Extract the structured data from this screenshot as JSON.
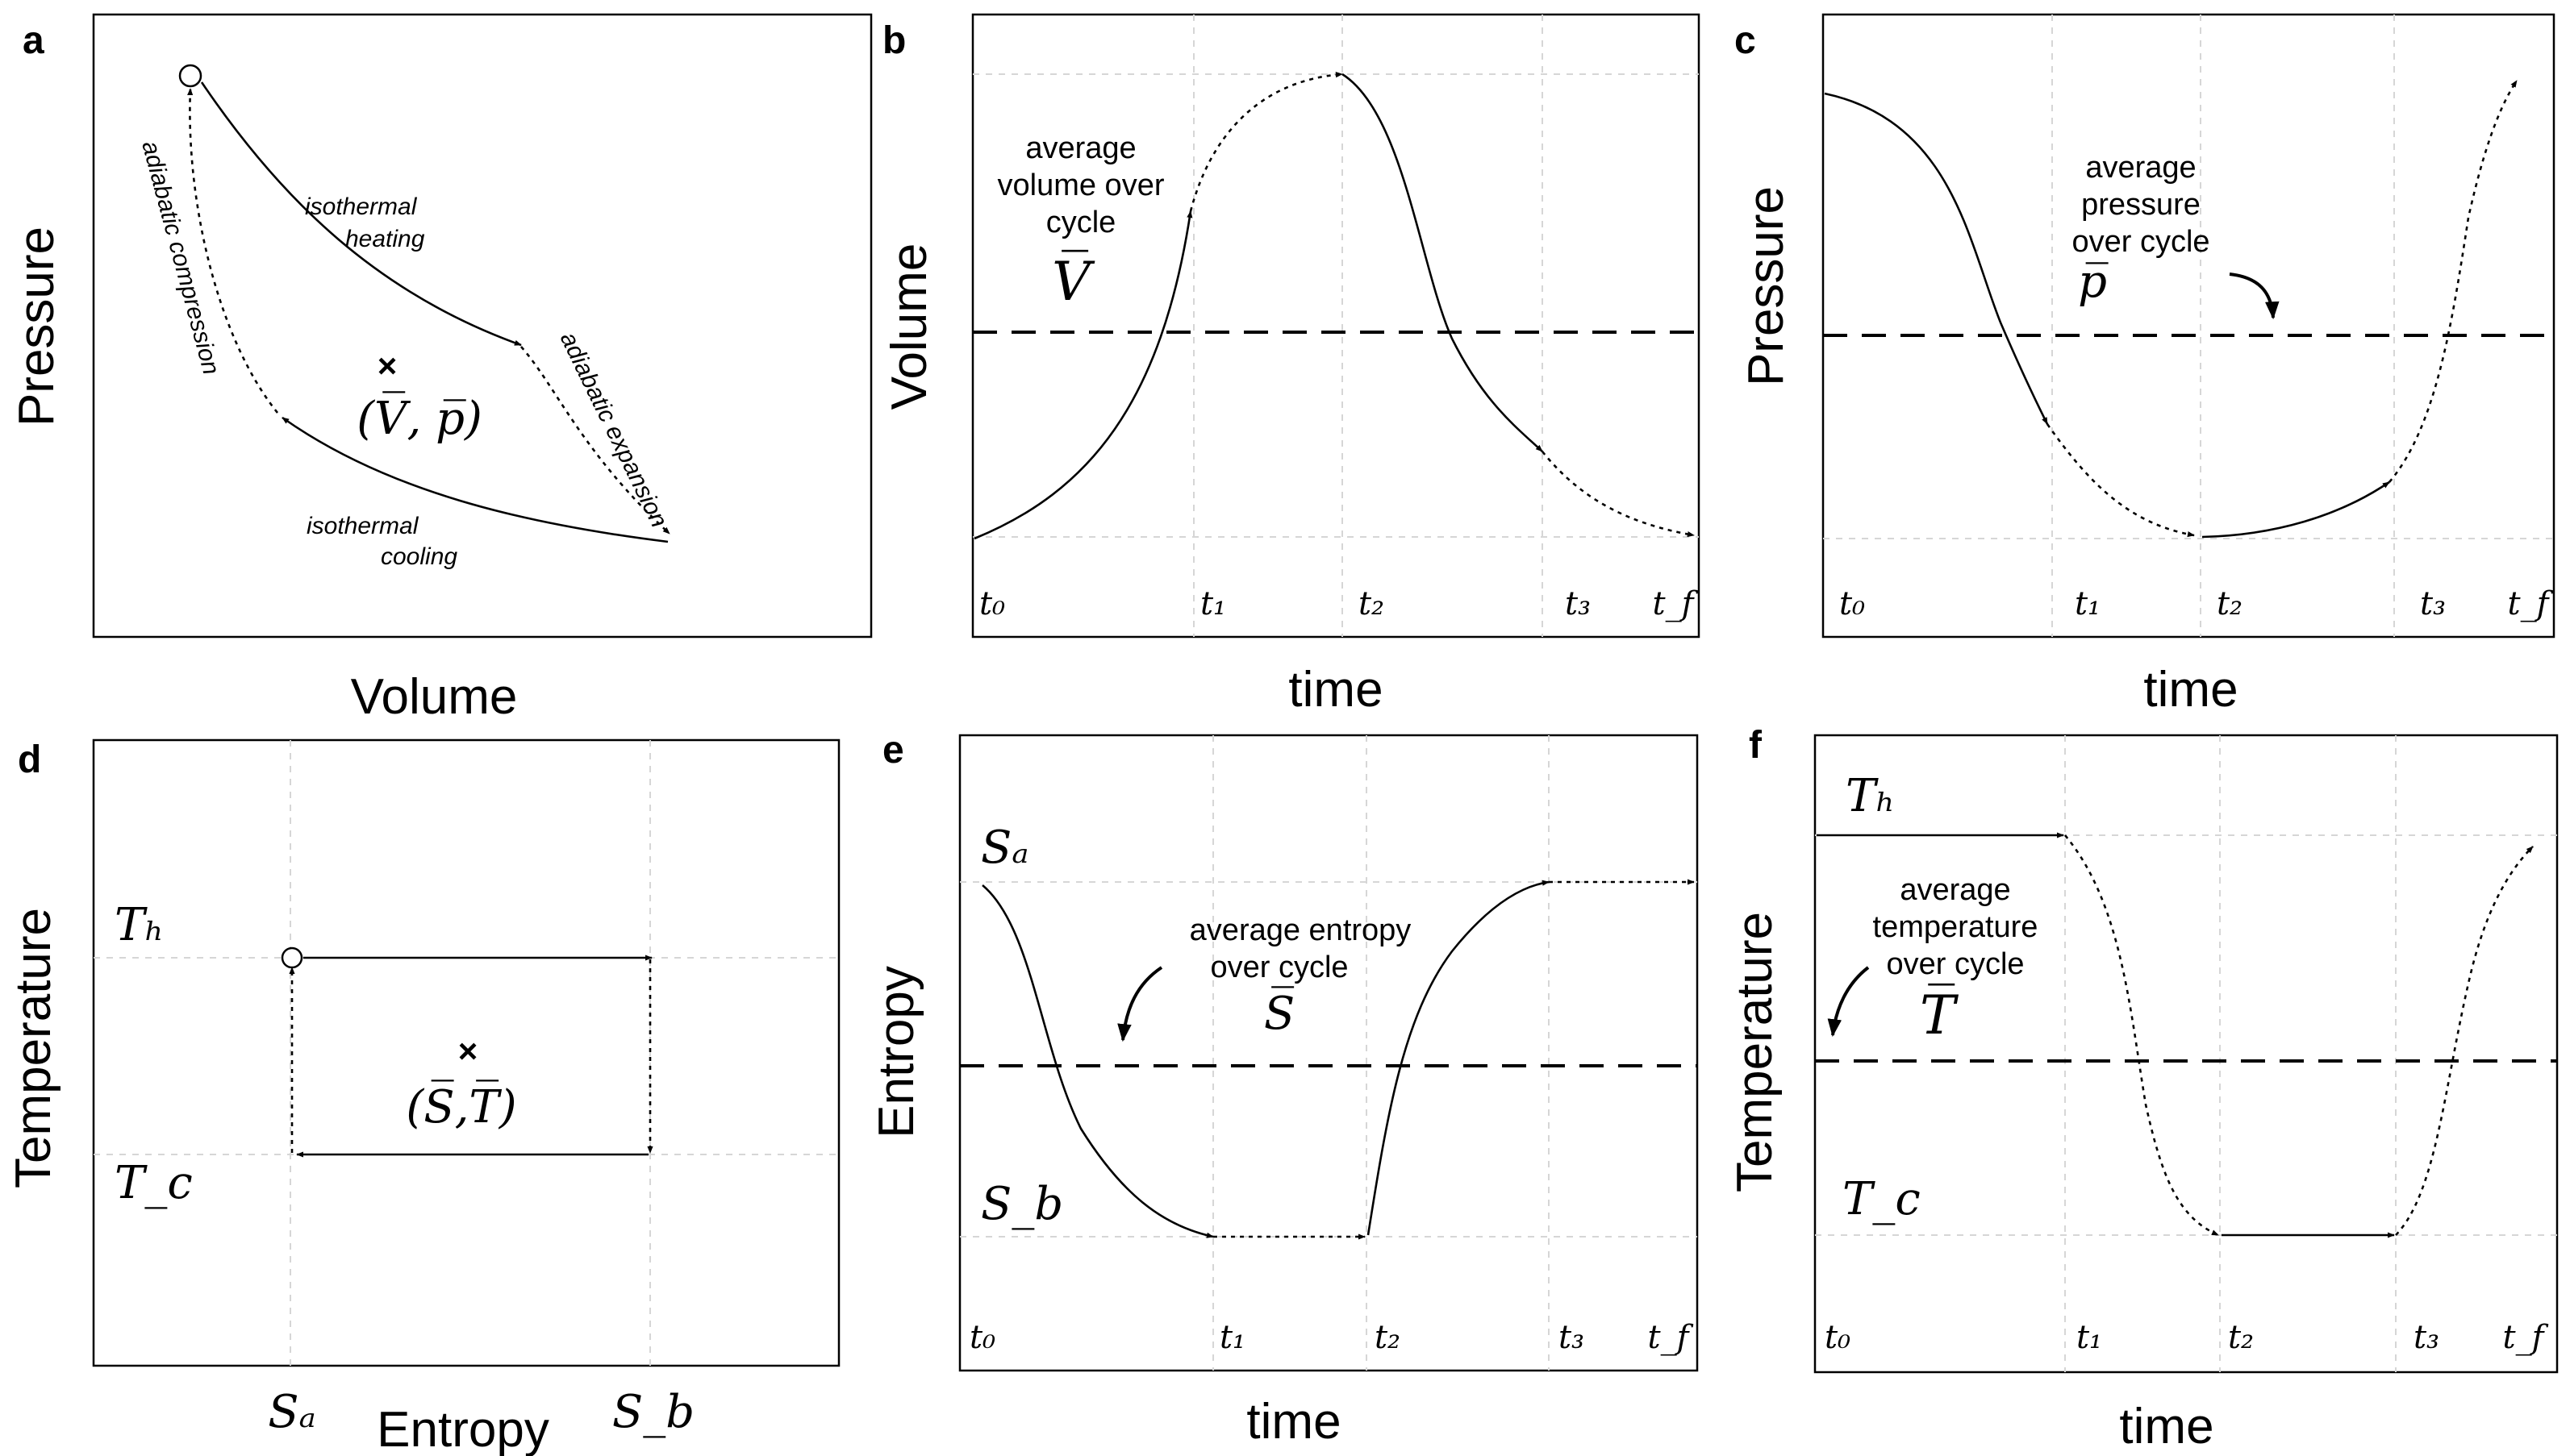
{
  "panels": {
    "a": {
      "label": "a",
      "ylabel": "Pressure",
      "xlabel": "Volume",
      "annotations": {
        "isothermal_heating_1": "isothermal",
        "isothermal_heating_2": "heating",
        "adiabatic_expansion": "adiabatic expansion",
        "isothermal_cooling_1": "isothermal",
        "isothermal_cooling_2": "cooling",
        "adiabatic_compression": "adiabatic compression"
      },
      "mean_marker": "×",
      "mean_label": "(V̅, p̅)"
    },
    "b": {
      "label": "b",
      "ylabel": "Volume",
      "xlabel": "time",
      "avg_text": [
        "average",
        "volume over",
        "cycle"
      ],
      "avg_symbol": "V̅",
      "ticks": [
        "t₀",
        "t₁",
        "t₂",
        "t₃",
        "t_f"
      ]
    },
    "c": {
      "label": "c",
      "ylabel": "Pressure",
      "xlabel": "time",
      "avg_text": [
        "average",
        "pressure",
        "over cycle"
      ],
      "avg_symbol": "p̅",
      "ticks": [
        "t₀",
        "t₁",
        "t₂",
        "t₃",
        "t_f"
      ]
    },
    "d": {
      "label": "d",
      "ylabel": "Temperature",
      "xlabel": "Entropy",
      "y_levels": [
        "Tₕ",
        "T_c"
      ],
      "x_levels": [
        "Sₐ",
        "S_b"
      ],
      "mean_marker": "×",
      "mean_label": "(S̅,T̅)"
    },
    "e": {
      "label": "e",
      "ylabel": "Entropy",
      "xlabel": "time",
      "avg_text": [
        "average entropy",
        "over cycle"
      ],
      "avg_symbol": "S̅",
      "y_levels": [
        "Sₐ",
        "S_b"
      ],
      "ticks": [
        "t₀",
        "t₁",
        "t₂",
        "t₃",
        "t_f"
      ]
    },
    "f": {
      "label": "f",
      "ylabel": "Temperature",
      "xlabel": "time",
      "avg_text": [
        "average",
        "temperature",
        "over cycle"
      ],
      "avg_symbol": "T̅",
      "y_levels": [
        "Tₕ",
        "T_c"
      ],
      "ticks": [
        "t₀",
        "t₁",
        "t₂",
        "t₃",
        "t_f"
      ]
    }
  }
}
